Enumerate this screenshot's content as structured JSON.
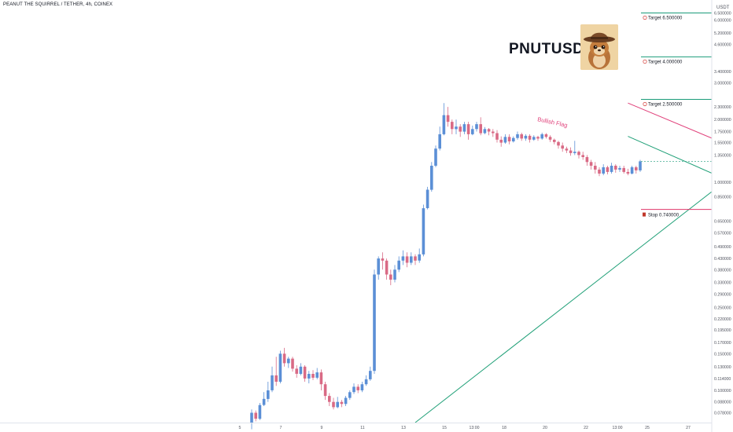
{
  "header": {
    "symbol_text": "PEANUT THE SQUIRREL / TETHER, 4h, COINEX"
  },
  "title": "PNUTUSDT",
  "currency": "USDT",
  "colors": {
    "up": "#5b8fd6",
    "down": "#d96a85",
    "target_line": "#1a9b79",
    "stop_line": "#e0366a",
    "flag_upper": "#e0407a",
    "flag_lower": "#20a078",
    "trend": "#20a078",
    "axis_text": "#50535e",
    "badge_dark": "#555a66",
    "dashed": "#1a9b79"
  },
  "price_axis": {
    "labels": [
      "6.500000",
      "6.000000",
      "5.200000",
      "4.600000",
      "3.400000",
      "3.000000",
      "2.300000",
      "2.000000",
      "1.750000",
      "1.550000",
      "1.350000",
      "1.000000",
      "0.850000",
      "0.650000",
      "0.570000",
      "0.490000",
      "0.430000",
      "0.380000",
      "0.330000",
      "0.290000",
      "0.250000",
      "0.220000",
      "0.195000",
      "0.170000",
      "0.150000",
      "0.130000",
      "0.114000",
      "0.100000",
      "0.088000",
      "0.078000"
    ],
    "scale": "log",
    "range": [
      0.07,
      7.0
    ],
    "current_price": "1.255754",
    "countdown": "02:20:33"
  },
  "time_axis": {
    "labels": [
      "5",
      "7",
      "9",
      "11",
      "13",
      "15",
      "13:00",
      "18",
      "20",
      "22",
      "13:00",
      "25",
      "27"
    ]
  },
  "annotations": {
    "targets": [
      {
        "icon": "target-icon",
        "label": "Target 6.500000",
        "value": 6.5,
        "badge": ""
      },
      {
        "icon": "target-icon",
        "label": "Target 4.000000",
        "value": 4.0,
        "badge": "4.000000"
      },
      {
        "icon": "target-icon",
        "label": "Target 2.500000",
        "value": 2.5,
        "badge": "2.500000"
      }
    ],
    "stop": {
      "icon": "stop-icon",
      "label": "Stop 0.740000",
      "value": 0.74,
      "badge": "0.740000"
    },
    "pattern_label": "Bullish Flag"
  },
  "chart_data": {
    "type": "candlestick",
    "scale": "log",
    "ylim": [
      0.07,
      7.0
    ],
    "candles": [
      [
        0.07,
        0.078,
        0.065,
        0.081
      ],
      [
        0.078,
        0.073,
        0.071,
        0.08
      ],
      [
        0.073,
        0.085,
        0.072,
        0.087
      ],
      [
        0.085,
        0.091,
        0.084,
        0.098
      ],
      [
        0.091,
        0.1,
        0.088,
        0.11
      ],
      [
        0.1,
        0.118,
        0.098,
        0.13
      ],
      [
        0.118,
        0.11,
        0.105,
        0.145
      ],
      [
        0.11,
        0.15,
        0.108,
        0.155
      ],
      [
        0.15,
        0.135,
        0.13,
        0.16
      ],
      [
        0.135,
        0.142,
        0.128,
        0.145
      ],
      [
        0.142,
        0.127,
        0.123,
        0.145
      ],
      [
        0.127,
        0.12,
        0.115,
        0.132
      ],
      [
        0.12,
        0.13,
        0.118,
        0.135
      ],
      [
        0.13,
        0.114,
        0.11,
        0.132
      ],
      [
        0.114,
        0.12,
        0.108,
        0.124
      ],
      [
        0.12,
        0.115,
        0.112,
        0.125
      ],
      [
        0.115,
        0.122,
        0.113,
        0.128
      ],
      [
        0.122,
        0.107,
        0.1,
        0.126
      ],
      [
        0.107,
        0.094,
        0.09,
        0.11
      ],
      [
        0.094,
        0.088,
        0.084,
        0.097
      ],
      [
        0.088,
        0.083,
        0.081,
        0.092
      ],
      [
        0.083,
        0.088,
        0.082,
        0.093
      ],
      [
        0.088,
        0.086,
        0.083,
        0.09
      ],
      [
        0.086,
        0.092,
        0.084,
        0.094
      ],
      [
        0.092,
        0.098,
        0.09,
        0.1
      ],
      [
        0.098,
        0.104,
        0.096,
        0.108
      ],
      [
        0.104,
        0.1,
        0.097,
        0.107
      ],
      [
        0.1,
        0.107,
        0.098,
        0.11
      ],
      [
        0.107,
        0.113,
        0.105,
        0.118
      ],
      [
        0.113,
        0.124,
        0.111,
        0.13
      ],
      [
        0.124,
        0.36,
        0.12,
        0.38
      ],
      [
        0.36,
        0.43,
        0.34,
        0.44
      ],
      [
        0.43,
        0.42,
        0.38,
        0.46
      ],
      [
        0.42,
        0.36,
        0.34,
        0.43
      ],
      [
        0.36,
        0.34,
        0.32,
        0.38
      ],
      [
        0.34,
        0.38,
        0.33,
        0.4
      ],
      [
        0.38,
        0.42,
        0.37,
        0.44
      ],
      [
        0.42,
        0.44,
        0.4,
        0.47
      ],
      [
        0.44,
        0.41,
        0.39,
        0.46
      ],
      [
        0.41,
        0.44,
        0.4,
        0.46
      ],
      [
        0.44,
        0.42,
        0.4,
        0.45
      ],
      [
        0.42,
        0.45,
        0.41,
        0.48
      ],
      [
        0.45,
        0.75,
        0.44,
        0.78
      ],
      [
        0.75,
        0.92,
        0.74,
        0.95
      ],
      [
        0.92,
        1.2,
        0.9,
        1.25
      ],
      [
        1.2,
        1.45,
        1.18,
        1.5
      ],
      [
        1.45,
        1.7,
        1.42,
        1.85
      ],
      [
        1.7,
        2.1,
        1.68,
        2.4
      ],
      [
        2.1,
        1.95,
        1.85,
        2.3
      ],
      [
        1.95,
        1.8,
        1.7,
        2.0
      ],
      [
        1.8,
        1.85,
        1.7,
        2.0
      ],
      [
        1.85,
        1.75,
        1.65,
        1.9
      ],
      [
        1.75,
        1.9,
        1.7,
        1.95
      ],
      [
        1.9,
        1.7,
        1.6,
        1.95
      ],
      [
        1.7,
        1.8,
        1.68,
        1.87
      ],
      [
        1.8,
        1.9,
        1.75,
        1.95
      ],
      [
        1.9,
        1.72,
        1.68,
        2.05
      ],
      [
        1.72,
        1.8,
        1.7,
        1.84
      ],
      [
        1.8,
        1.75,
        1.68,
        1.82
      ],
      [
        1.75,
        1.72,
        1.65,
        1.8
      ],
      [
        1.72,
        1.6,
        1.55,
        1.78
      ],
      [
        1.6,
        1.55,
        1.48,
        1.66
      ],
      [
        1.55,
        1.65,
        1.53,
        1.7
      ],
      [
        1.65,
        1.57,
        1.52,
        1.7
      ],
      [
        1.57,
        1.63,
        1.55,
        1.66
      ],
      [
        1.63,
        1.7,
        1.6,
        1.75
      ],
      [
        1.7,
        1.62,
        1.58,
        1.73
      ],
      [
        1.62,
        1.67,
        1.58,
        1.7
      ],
      [
        1.67,
        1.6,
        1.55,
        1.7
      ],
      [
        1.6,
        1.65,
        1.58,
        1.68
      ],
      [
        1.65,
        1.62,
        1.58,
        1.67
      ],
      [
        1.62,
        1.7,
        1.6,
        1.73
      ],
      [
        1.7,
        1.65,
        1.62,
        1.72
      ],
      [
        1.65,
        1.6,
        1.56,
        1.68
      ],
      [
        1.6,
        1.56,
        1.52,
        1.62
      ],
      [
        1.56,
        1.5,
        1.45,
        1.58
      ],
      [
        1.5,
        1.45,
        1.4,
        1.55
      ],
      [
        1.45,
        1.42,
        1.38,
        1.48
      ],
      [
        1.42,
        1.38,
        1.34,
        1.47
      ],
      [
        1.38,
        1.4,
        1.35,
        1.58
      ],
      [
        1.4,
        1.35,
        1.3,
        1.42
      ],
      [
        1.35,
        1.32,
        1.28,
        1.4
      ],
      [
        1.32,
        1.25,
        1.2,
        1.35
      ],
      [
        1.25,
        1.2,
        1.15,
        1.28
      ],
      [
        1.2,
        1.15,
        1.1,
        1.25
      ],
      [
        1.15,
        1.1,
        1.07,
        1.18
      ],
      [
        1.1,
        1.18,
        1.08,
        1.22
      ],
      [
        1.18,
        1.12,
        1.09,
        1.2
      ],
      [
        1.12,
        1.2,
        1.1,
        1.24
      ],
      [
        1.2,
        1.15,
        1.11,
        1.22
      ],
      [
        1.15,
        1.17,
        1.12,
        1.2
      ],
      [
        1.17,
        1.12,
        1.1,
        1.2
      ],
      [
        1.12,
        1.1,
        1.08,
        1.16
      ],
      [
        1.1,
        1.18,
        1.09,
        1.2
      ],
      [
        1.18,
        1.14,
        1.1,
        1.2
      ],
      [
        1.14,
        1.26,
        1.12,
        1.28
      ]
    ],
    "lines": [
      {
        "name": "flag-upper",
        "from": [
          23,
          2.4
        ],
        "to": [
          30.5,
          1.36
        ]
      },
      {
        "name": "flag-lower",
        "from": [
          23,
          1.66
        ],
        "to": [
          30.3,
          0.93
        ]
      },
      {
        "name": "trend-support",
        "from": [
          10,
          0.07
        ],
        "to": [
          31,
          1.35
        ]
      }
    ]
  }
}
